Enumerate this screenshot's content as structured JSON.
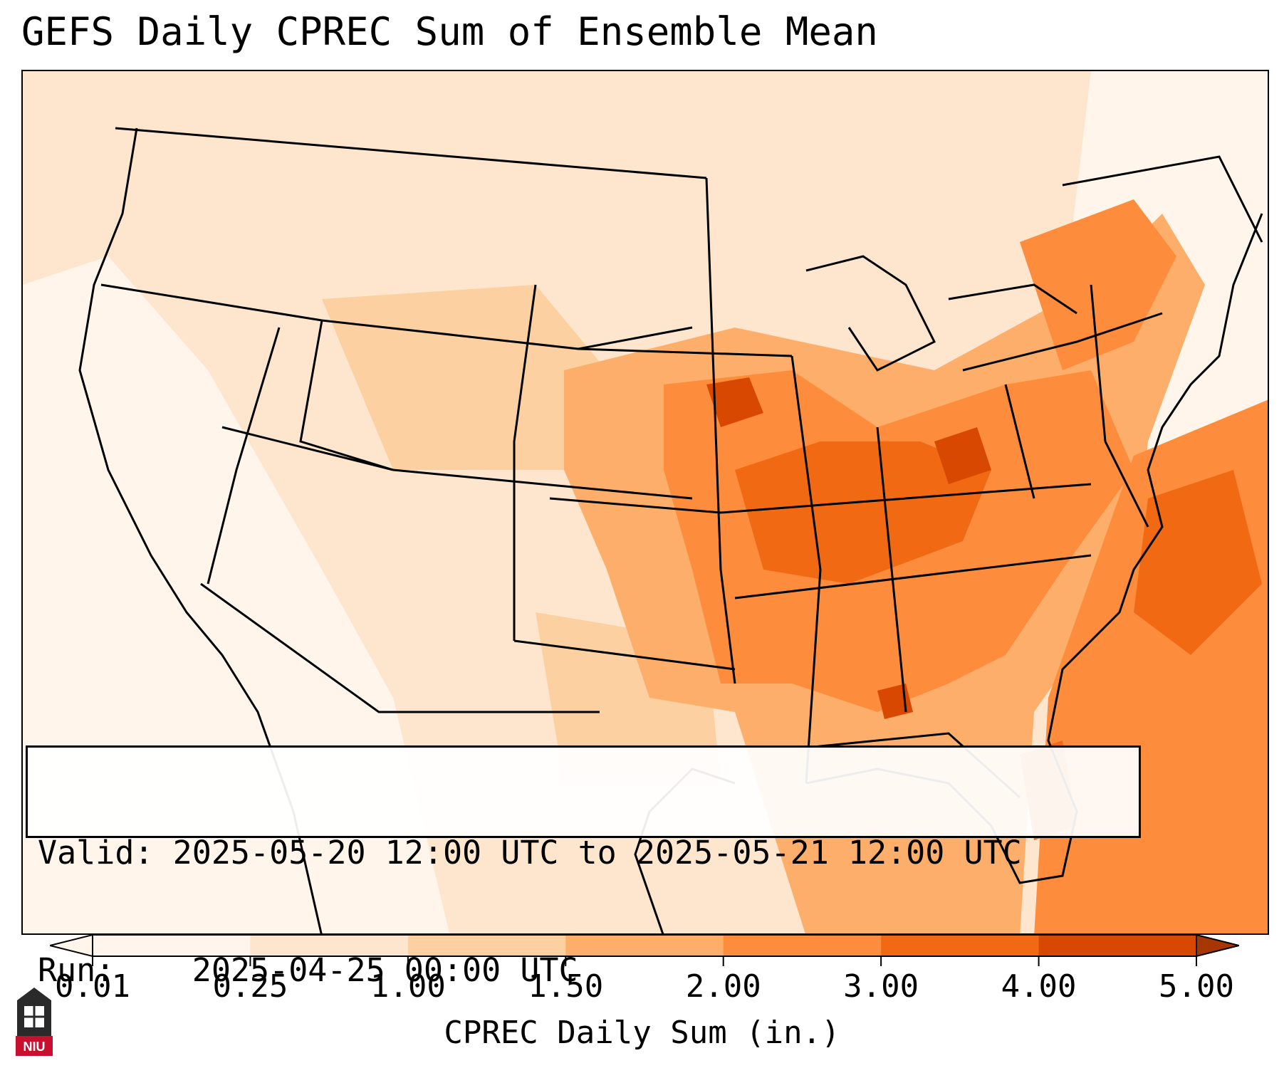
{
  "title": "GEFS Daily CPREC Sum of Ensemble Mean",
  "info": {
    "valid_label": "Valid:",
    "valid_value": "2025-05-20 12:00 UTC to 2025-05-21 12:00 UTC",
    "run_label": "Run:",
    "run_value": "2025-04-25 00:00 UTC"
  },
  "colorbar": {
    "label": "CPREC Daily Sum (in.)",
    "levels": [
      "0.01",
      "0.25",
      "1.00",
      "1.50",
      "2.00",
      "3.00",
      "4.00",
      "5.00"
    ],
    "colors": [
      "#fff5eb",
      "#fee6ce",
      "#fdd0a2",
      "#fdae6b",
      "#fd8d3c",
      "#f16913",
      "#d94801",
      "#a63603"
    ],
    "extend": "both"
  },
  "logo": {
    "text": "NIU",
    "colors": {
      "red": "#c8102e",
      "dark": "#2a2a2a"
    }
  },
  "map_colors": {
    "background": "#fff4ea",
    "low": "#fee6ce",
    "light": "#fdd0a2",
    "medium": "#fdae6b",
    "high": "#fd8d3c",
    "very_high": "#f16913",
    "peak": "#d94801"
  }
}
